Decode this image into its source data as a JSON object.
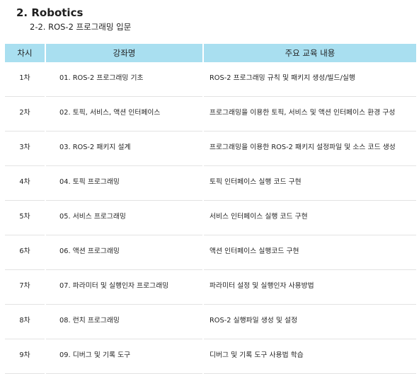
{
  "page": {
    "title": "2. Robotics",
    "subtitle": "2-2. ROS-2 프로그래밍 입문"
  },
  "table": {
    "headers": [
      "차시",
      "강좌명",
      "주요 교육 내용"
    ],
    "rows": [
      {
        "session": "1차",
        "title": "01. ROS-2 프로그래밍 기초",
        "content": "ROS-2 프로그래밍 규칙 및 패키지 생성/빌드/실행"
      },
      {
        "session": "2차",
        "title": "02. 토픽, 서비스, 액션 인터페이스",
        "content": "프로그래밍을 이용한 토픽, 서비스 및 액션 인터페이스 환경 구성"
      },
      {
        "session": "3차",
        "title": "03. ROS-2 패키지 설계",
        "content": "프로그래밍을 이용한 ROS-2 패키지 설정파일 및 소스 코드 생성"
      },
      {
        "session": "4차",
        "title": "04. 토픽 프로그래밍",
        "content": "토픽 인터페이스 실행 코드 구현"
      },
      {
        "session": "5차",
        "title": "05. 서비스 프로그래밍",
        "content": "서비스 인터페이스 실행 코드 구현"
      },
      {
        "session": "6차",
        "title": "06. 액션 프로그래밍",
        "content": "액션 인터페이스 실행코드 구현"
      },
      {
        "session": "7차",
        "title": "07. 파라미터 및 실행인자 프로그래밍",
        "content": "파라미터 설정 및 실행인자 사용방법"
      },
      {
        "session": "8차",
        "title": "08. 런치 프로그래밍",
        "content": "ROS-2 실행파일 생성 및 설정"
      },
      {
        "session": "9차",
        "title": "09. 디버그 및 기록 도구",
        "content": "디버그 및 기록 도구 사용법 학습"
      }
    ]
  },
  "colors": {
    "header_background": "#a9dff0",
    "row_divider": "#e3e3e3"
  }
}
